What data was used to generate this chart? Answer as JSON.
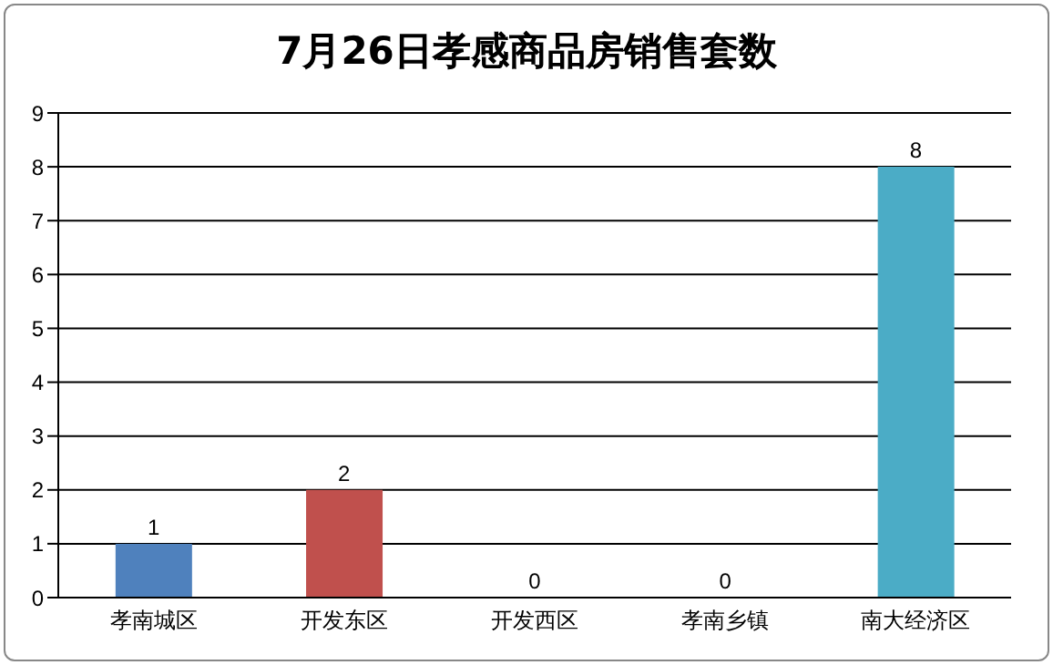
{
  "chart_data": {
    "type": "bar",
    "title": "7月26日孝感商品房销售套数",
    "categories": [
      "孝南城区",
      "开发东区",
      "开发西区",
      "孝南乡镇",
      "南大经济区"
    ],
    "values": [
      1,
      2,
      0,
      0,
      8
    ],
    "colors": [
      "#4f81bd",
      "#c0504d",
      "#9bbb59",
      "#8064a2",
      "#4bacc6"
    ],
    "ylim": [
      0,
      9
    ],
    "yticks": [
      0,
      1,
      2,
      3,
      4,
      5,
      6,
      7,
      8,
      9
    ],
    "grid": "y",
    "data_labels": true,
    "legend": false
  }
}
